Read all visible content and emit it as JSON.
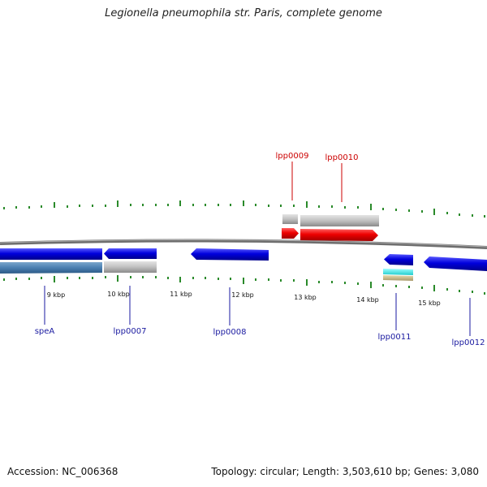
{
  "title": "Legionella pneumophila str. Paris, complete genome",
  "footer": {
    "accession": "Accession: NC_006368",
    "summary": "Topology: circular; Length: 3,503,610 bp; Genes: 3,080"
  },
  "colors": {
    "forward_cds": "#ee0000",
    "reverse_cds": "#0000dd",
    "gene_gray": "#b8b8b8",
    "steel_blue": "#4a7fb0",
    "cyan": "#33dddd",
    "tan": "#c8b888",
    "tick_green": "#2a8a2a",
    "backbone": "#7a7a7a",
    "forward_label": "#cc0000",
    "reverse_label": "#1a1aa0"
  },
  "scale_labels": [
    "9 kbp",
    "10 kbp",
    "11 kbp",
    "12 kbp",
    "13 kbp",
    "14 kbp",
    "15 kbp"
  ],
  "forward_labels": [
    "lpp0009",
    "lpp0010"
  ],
  "reverse_labels": [
    "speA",
    "lpp0007",
    "lpp0008",
    "lpp0011",
    "lpp0012"
  ]
}
